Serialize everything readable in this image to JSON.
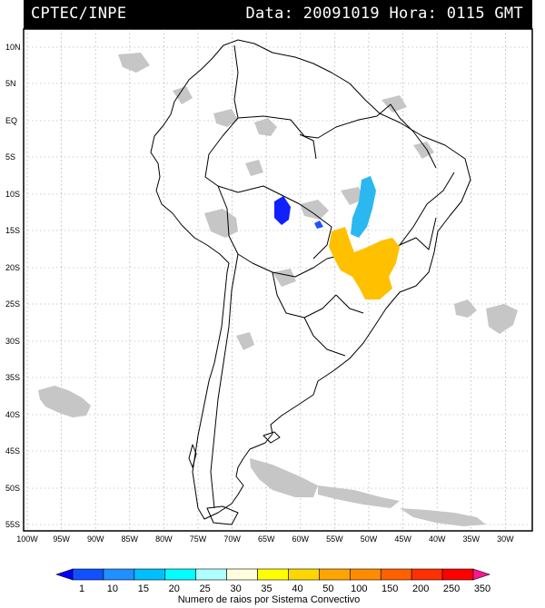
{
  "header": {
    "agency": "CPTEC/INPE",
    "datetime": "Data: 20091019 Hora: 0115 GMT"
  },
  "map": {
    "y_labels": [
      "10N",
      "5N",
      "EQ",
      "5S",
      "10S",
      "15S",
      "20S",
      "25S",
      "30S",
      "35S",
      "40S",
      "45S",
      "50S",
      "55S"
    ],
    "x_labels": [
      "100W",
      "95W",
      "90W",
      "85W",
      "80W",
      "75W",
      "70W",
      "65W",
      "60W",
      "55W",
      "50W",
      "45W",
      "40W",
      "35W",
      "30W"
    ],
    "grid": "dotted"
  },
  "colorbar": {
    "ticks": [
      "1",
      "10",
      "15",
      "20",
      "25",
      "30",
      "35",
      "40",
      "50",
      "100",
      "150",
      "200",
      "250",
      "350"
    ],
    "colors": [
      "#0000ff",
      "#1050ff",
      "#1e90ff",
      "#00bfff",
      "#00ffff",
      "#b0ffff",
      "#ffffe0",
      "#ffff00",
      "#ffd700",
      "#ffa500",
      "#ff8c00",
      "#ff6000",
      "#ff3000",
      "#ff0000",
      "#ff1493"
    ],
    "title": "Numero de raios por Sistema Convectivo"
  },
  "colors": {
    "cloud": "#c6c6c6",
    "land_border": "#000000"
  }
}
